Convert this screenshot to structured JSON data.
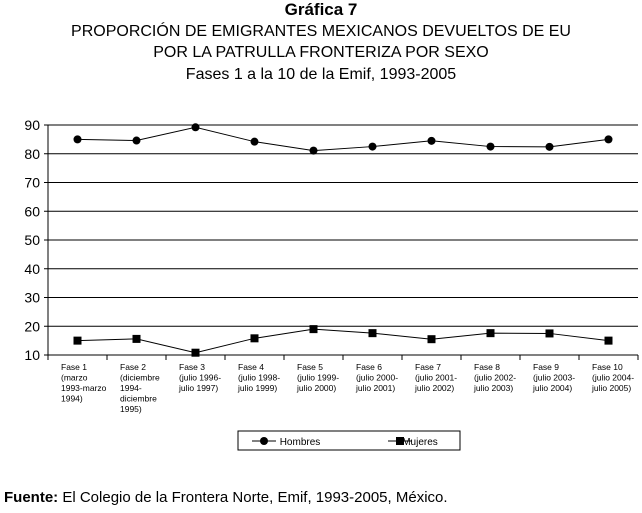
{
  "title": {
    "line1": "Gráfica 7",
    "line2": "PROPORCIÓN DE EMIGRANTES MEXICANOS DEVUELTOS DE EU",
    "line3": "POR LA PATRULLA FRONTERIZA POR SEXO",
    "line4": "Fases 1 a la 10 de la Emif, 1993-2005"
  },
  "source": {
    "label": "Fuente:",
    "text": "El Colegio de la Frontera Norte, Emif, 1993-2005, México."
  },
  "chart_data": {
    "type": "line",
    "categories": [
      [
        "Fase 1",
        "(marzo",
        "1993-marzo",
        "1994)"
      ],
      [
        "Fase 2",
        "(diciembre",
        "1994-",
        "diciembre",
        "1995)"
      ],
      [
        "Fase 3",
        "(julio 1996-",
        "julio 1997)"
      ],
      [
        "Fase 4",
        "(julio 1998-",
        "julio 1999)"
      ],
      [
        "Fase 5",
        "(julio 1999-",
        "julio 2000)"
      ],
      [
        "Fase 6",
        "(julio 2000-",
        "julio 2001)"
      ],
      [
        "Fase 7",
        "(julio 2001-",
        "julio 2002)"
      ],
      [
        "Fase 8",
        "(julio 2002-",
        "julio 2003)"
      ],
      [
        "Fase 9",
        "(julio 2003-",
        "julio 2004)"
      ],
      [
        "Fase 10",
        "(julio 2004-",
        "julio 2005)"
      ]
    ],
    "series": [
      {
        "name": "Hombres",
        "marker": "circle",
        "values": [
          85.0,
          84.6,
          89.2,
          84.2,
          81.1,
          82.5,
          84.5,
          82.5,
          82.4,
          85.0
        ]
      },
      {
        "name": "Mujeres",
        "marker": "square",
        "values": [
          15.0,
          15.6,
          10.8,
          15.8,
          19.0,
          17.6,
          15.5,
          17.6,
          17.5,
          15.0
        ]
      }
    ],
    "ylim": [
      10,
      90
    ],
    "yticks": [
      10,
      20,
      30,
      40,
      50,
      60,
      70,
      80,
      90
    ],
    "grid": true,
    "legend": "bottom"
  }
}
